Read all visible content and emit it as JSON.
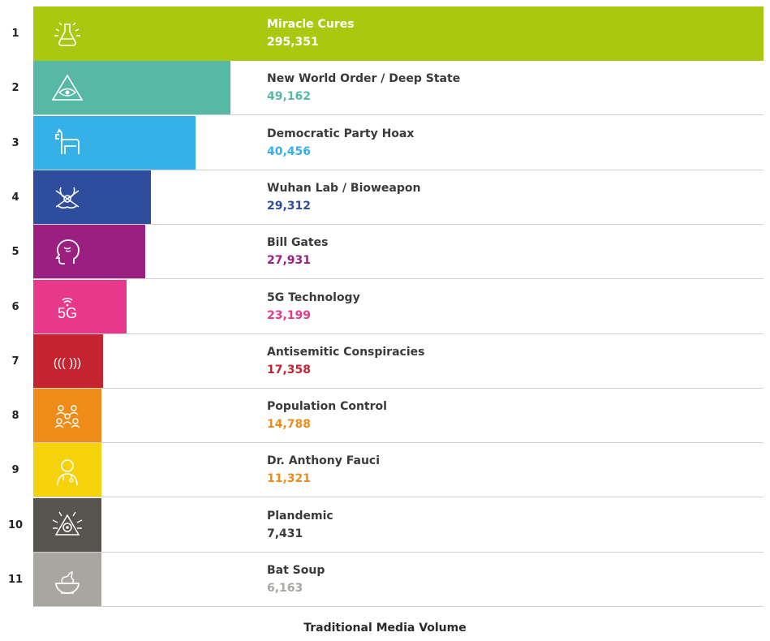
{
  "chart_data": {
    "type": "bar",
    "orientation": "horizontal",
    "xlabel": "Traditional Media Volume",
    "ranks": [
      "1",
      "2",
      "3",
      "4",
      "5",
      "6",
      "7",
      "8",
      "9",
      "10",
      "11"
    ],
    "categories": [
      "Miracle Cures",
      "New World Order / Deep State",
      "Democratic Party Hoax",
      "Wuhan Lab / Bioweapon",
      "Bill Gates",
      "5G Technology",
      "Antisemitic Conspiracies",
      "Population Control",
      "Dr. Anthony Fauci",
      "Plandemic",
      "Bat Soup"
    ],
    "values": [
      295351,
      49162,
      40456,
      29312,
      27931,
      23199,
      17358,
      14788,
      11321,
      7431,
      6163
    ],
    "value_labels": [
      "295,351",
      "49,162",
      "40,456",
      "29,312",
      "27,931",
      "23,199",
      "17,358",
      "14,788",
      "11,321",
      "7,431",
      "6,163"
    ],
    "colors": [
      "#a9c80f",
      "#57b8a5",
      "#35b1e8",
      "#2e4d9c",
      "#9b1f80",
      "#e8388b",
      "#c4242f",
      "#ef8c18",
      "#f6d20c",
      "#57534f",
      "#a9a6a2"
    ],
    "value_colors": [
      "#ffffff",
      "#57b8a5",
      "#35b1e8",
      "#2e4d9c",
      "#9b1f80",
      "#e8388b",
      "#c4242f",
      "#ef8c18",
      "#ef8c18",
      "#3a3a3a",
      "#a9a6a2"
    ],
    "icons": [
      "flask-icon",
      "eye-pyramid-icon",
      "donkey-icon",
      "biohazard-icon",
      "head-icon",
      "5g-icon",
      "star-of-david-icon",
      "crowd-icon",
      "doctor-icon",
      "virus-eye-icon",
      "soup-bowl-icon"
    ],
    "legend": "none",
    "grid": false
  }
}
